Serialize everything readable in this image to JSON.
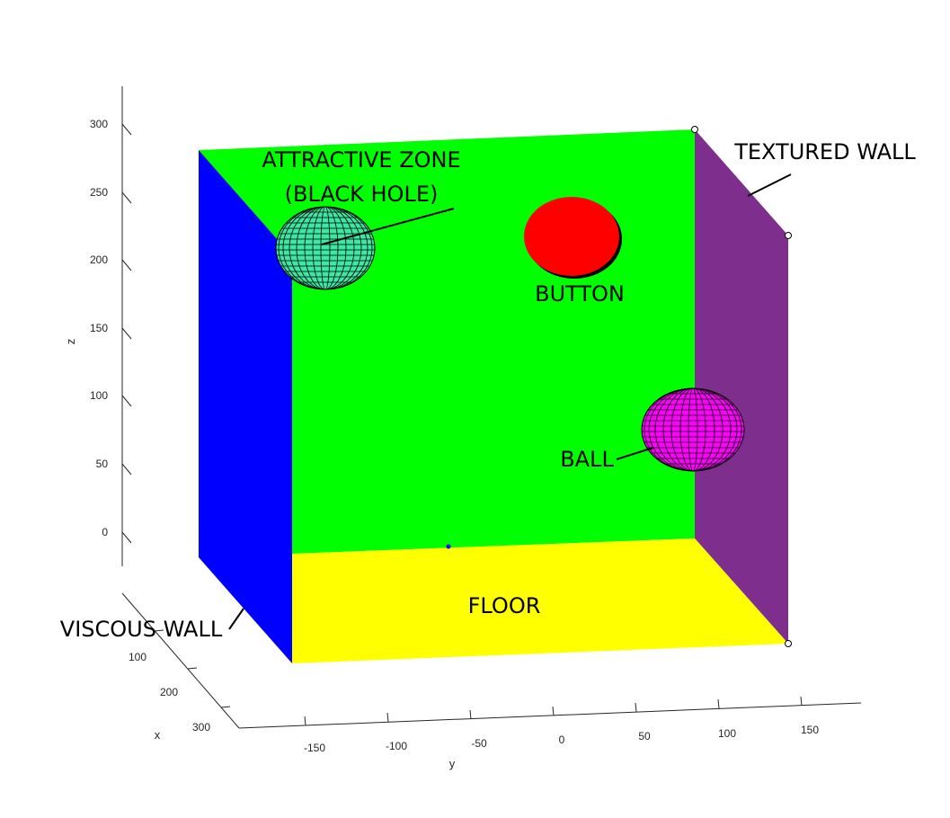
{
  "axes": {
    "x": {
      "label": "x",
      "ticks": [
        "100",
        "200",
        "300"
      ]
    },
    "y": {
      "label": "y",
      "ticks": [
        "-150",
        "-100",
        "-50",
        "0",
        "50",
        "100",
        "150"
      ]
    },
    "z": {
      "label": "z",
      "ticks": [
        "300",
        "250",
        "200",
        "150",
        "100",
        "50",
        "0"
      ]
    }
  },
  "annotations": {
    "attractive_zone_line1": "ATTRACTIVE ZONE",
    "attractive_zone_line2": "(BLACK HOLE)",
    "textured_wall": "TEXTURED WALL",
    "button": "BUTTON",
    "ball": "BALL",
    "floor": "FLOOR",
    "viscous_wall": "VISCOUS WALL"
  },
  "colors": {
    "back_wall": "#00ff00",
    "viscous_wall": "#0000ff",
    "textured_wall": "#7e2f8e",
    "floor": "#ffff00",
    "button": "#ff0000",
    "ball": "#ff00ff",
    "attractive_zone": "#3ee7a2",
    "axis": "#262626"
  }
}
